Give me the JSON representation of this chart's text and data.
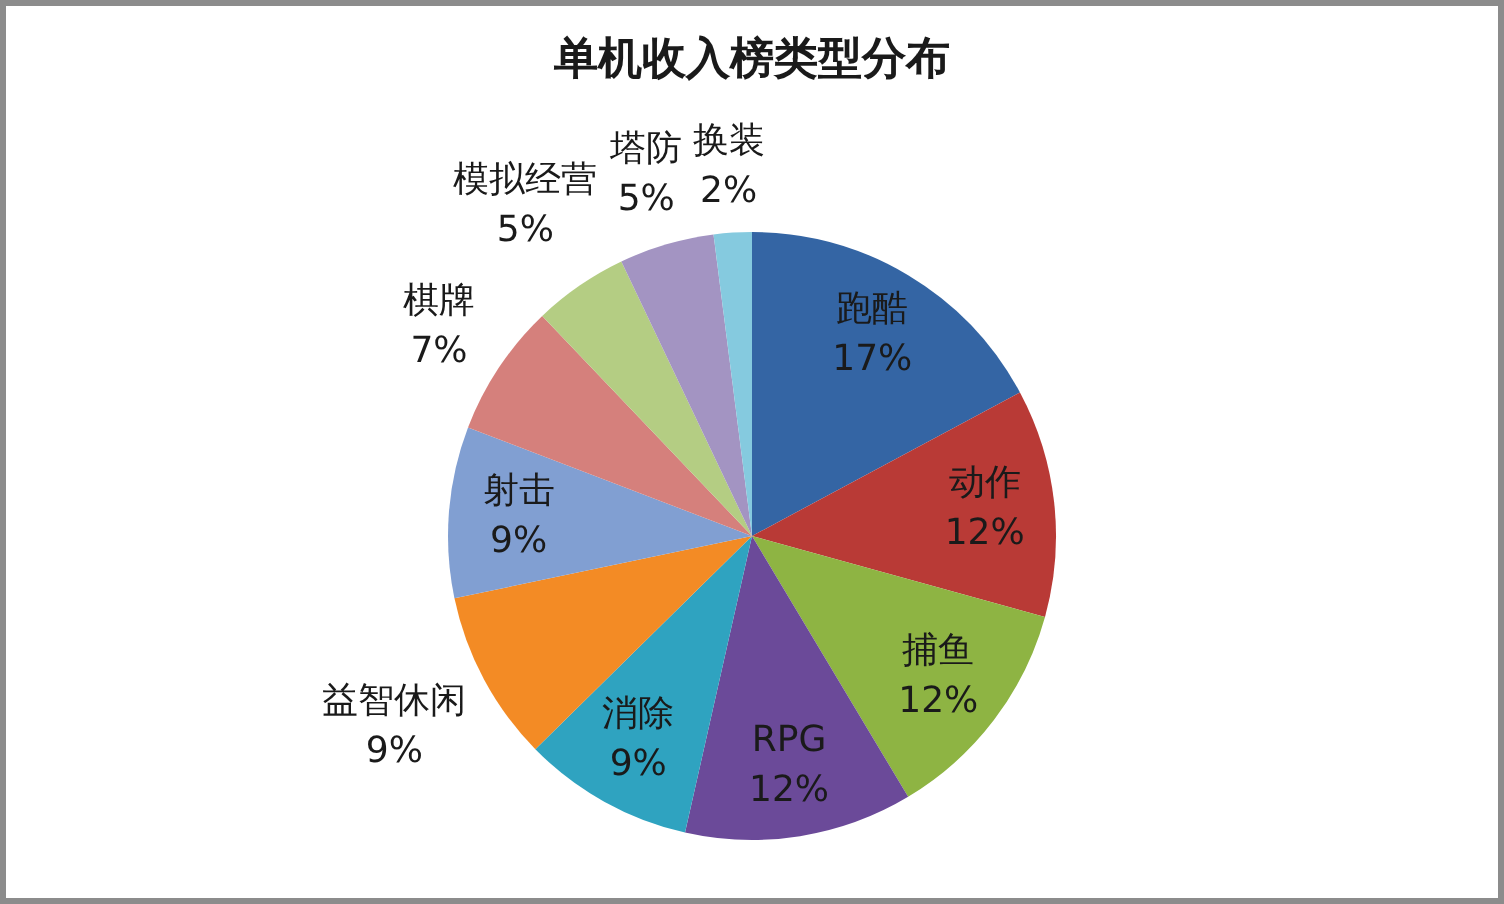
{
  "chart_data": {
    "type": "pie",
    "title": "单机收入榜类型分布",
    "categories": [
      "跑酷",
      "动作",
      "捕鱼",
      "RPG",
      "消除",
      "益智休闲",
      "射击",
      "棋牌",
      "模拟经营",
      "塔防",
      "换装"
    ],
    "values": [
      17,
      12,
      12,
      12,
      9,
      9,
      9,
      7,
      5,
      5,
      2
    ],
    "value_labels": [
      "17%",
      "12%",
      "12%",
      "12%",
      "9%",
      "9%",
      "9%",
      "7%",
      "5%",
      "5%",
      "2%"
    ],
    "colors": [
      "#3465a4",
      "#b93a36",
      "#8eb443",
      "#6b4a99",
      "#2fa3c0",
      "#f38b25",
      "#819fd2",
      "#d5807c",
      "#b4cd83",
      "#a394c2",
      "#85cadf"
    ]
  }
}
